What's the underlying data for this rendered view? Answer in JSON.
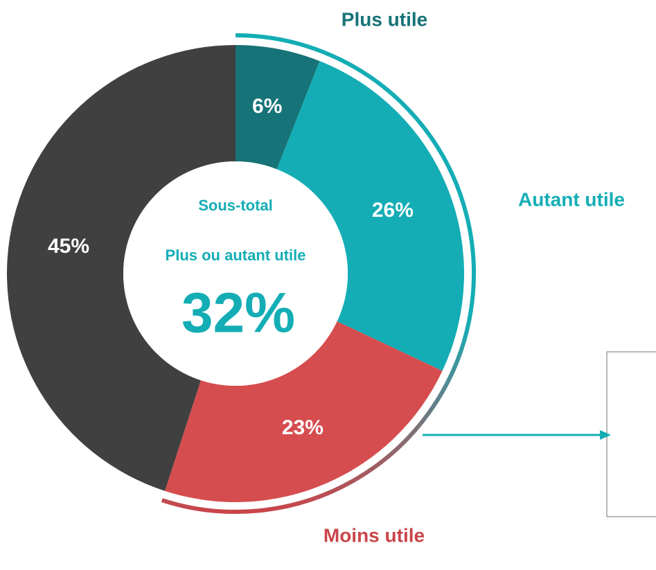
{
  "chart_data": {
    "type": "donut",
    "categories": [
      "Plus utile",
      "Autant utile",
      "Moins utile",
      null
    ],
    "values": [
      6,
      26,
      23,
      45
    ],
    "value_labels": [
      "6%",
      "26%",
      "23%",
      "45%"
    ],
    "colors": [
      "#167377",
      "#14adb5",
      "#d64d4f",
      "#404040"
    ],
    "center": {
      "title": "Sous-total",
      "subtitle": "Plus ou autant utile",
      "value_label": "32%"
    }
  }
}
